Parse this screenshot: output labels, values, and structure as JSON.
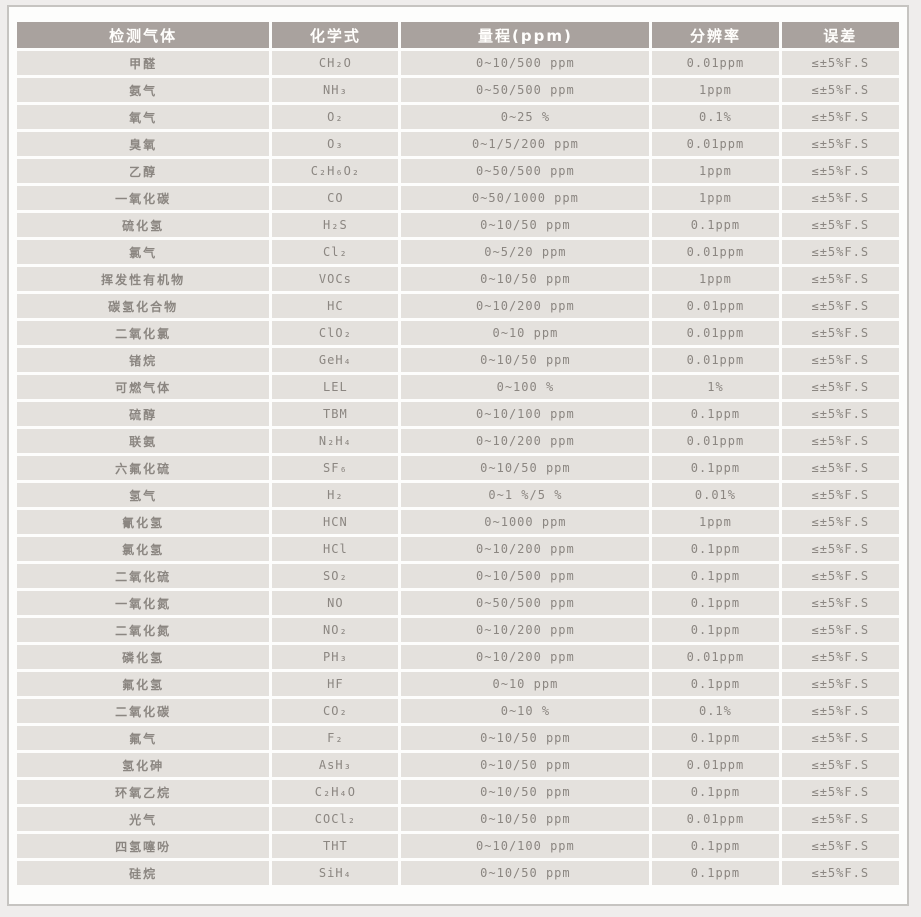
{
  "colors": {
    "page_bg": "#efedec",
    "frame_border": "#c6c4c1",
    "frame_bg": "#fdfdfc",
    "header_bg": "#a9a29e",
    "header_text": "#fffefc",
    "row_bg": "#e4e1dd",
    "cell_text": "#8b8681"
  },
  "table": {
    "columns": [
      {
        "label": "检测气体"
      },
      {
        "label": "化学式"
      },
      {
        "label": "量程(ppm)"
      },
      {
        "label": "分辨率"
      },
      {
        "label": "误差"
      }
    ],
    "rows": [
      {
        "gas": "甲醛",
        "formula": "CH₂O",
        "range": "0~10/500 ppm",
        "resolution": "0.01ppm",
        "error": "≤±5%F.S"
      },
      {
        "gas": "氨气",
        "formula": "NH₃",
        "range": "0~50/500 ppm",
        "resolution": "1ppm",
        "error": "≤±5%F.S"
      },
      {
        "gas": "氧气",
        "formula": "O₂",
        "range": "0~25 %",
        "resolution": "0.1%",
        "error": "≤±5%F.S"
      },
      {
        "gas": "臭氧",
        "formula": "O₃",
        "range": "0~1/5/200 ppm",
        "resolution": "0.01ppm",
        "error": "≤±5%F.S"
      },
      {
        "gas": "乙醇",
        "formula": "C₂H₆O₂",
        "range": "0~50/500 ppm",
        "resolution": "1ppm",
        "error": "≤±5%F.S"
      },
      {
        "gas": "一氧化碳",
        "formula": "CO",
        "range": "0~50/1000 ppm",
        "resolution": "1ppm",
        "error": "≤±5%F.S"
      },
      {
        "gas": "硫化氢",
        "formula": "H₂S",
        "range": "0~10/50 ppm",
        "resolution": "0.1ppm",
        "error": "≤±5%F.S"
      },
      {
        "gas": "氯气",
        "formula": "Cl₂",
        "range": "0~5/20 ppm",
        "resolution": "0.01ppm",
        "error": "≤±5%F.S"
      },
      {
        "gas": "挥发性有机物",
        "formula": "VOCs",
        "range": "0~10/50 ppm",
        "resolution": "1ppm",
        "error": "≤±5%F.S"
      },
      {
        "gas": "碳氢化合物",
        "formula": "HC",
        "range": "0~10/200 ppm",
        "resolution": "0.01ppm",
        "error": "≤±5%F.S"
      },
      {
        "gas": "二氧化氯",
        "formula": "ClO₂",
        "range": "0~10 ppm",
        "resolution": "0.01ppm",
        "error": "≤±5%F.S"
      },
      {
        "gas": "锗烷",
        "formula": "GeH₄",
        "range": "0~10/50 ppm",
        "resolution": "0.01ppm",
        "error": "≤±5%F.S"
      },
      {
        "gas": "可燃气体",
        "formula": "LEL",
        "range": "0~100 %",
        "resolution": "1%",
        "error": "≤±5%F.S"
      },
      {
        "gas": "硫醇",
        "formula": "TBM",
        "range": "0~10/100 ppm",
        "resolution": "0.1ppm",
        "error": "≤±5%F.S"
      },
      {
        "gas": "联氨",
        "formula": "N₂H₄",
        "range": "0~10/200 ppm",
        "resolution": "0.01ppm",
        "error": "≤±5%F.S"
      },
      {
        "gas": "六氟化硫",
        "formula": "SF₆",
        "range": "0~10/50 ppm",
        "resolution": "0.1ppm",
        "error": "≤±5%F.S"
      },
      {
        "gas": "氢气",
        "formula": "H₂",
        "range": "0~1 %/5 %",
        "resolution": "0.01%",
        "error": "≤±5%F.S"
      },
      {
        "gas": "氰化氢",
        "formula": "HCN",
        "range": "0~1000 ppm",
        "resolution": "1ppm",
        "error": "≤±5%F.S"
      },
      {
        "gas": "氯化氢",
        "formula": "HCl",
        "range": "0~10/200 ppm",
        "resolution": "0.1ppm",
        "error": "≤±5%F.S"
      },
      {
        "gas": "二氧化硫",
        "formula": "SO₂",
        "range": "0~10/500 ppm",
        "resolution": "0.1ppm",
        "error": "≤±5%F.S"
      },
      {
        "gas": "一氧化氮",
        "formula": "NO",
        "range": "0~50/500 ppm",
        "resolution": "0.1ppm",
        "error": "≤±5%F.S"
      },
      {
        "gas": "二氧化氮",
        "formula": "NO₂",
        "range": "0~10/200 ppm",
        "resolution": "0.1ppm",
        "error": "≤±5%F.S"
      },
      {
        "gas": "磷化氢",
        "formula": "PH₃",
        "range": "0~10/200 ppm",
        "resolution": "0.01ppm",
        "error": "≤±5%F.S"
      },
      {
        "gas": "氟化氢",
        "formula": "HF",
        "range": "0~10 ppm",
        "resolution": "0.1ppm",
        "error": "≤±5%F.S"
      },
      {
        "gas": "二氧化碳",
        "formula": "CO₂",
        "range": "0~10 %",
        "resolution": "0.1%",
        "error": "≤±5%F.S"
      },
      {
        "gas": "氟气",
        "formula": "F₂",
        "range": "0~10/50 ppm",
        "resolution": "0.1ppm",
        "error": "≤±5%F.S"
      },
      {
        "gas": "氢化砷",
        "formula": "AsH₃",
        "range": "0~10/50 ppm",
        "resolution": "0.01ppm",
        "error": "≤±5%F.S"
      },
      {
        "gas": "环氧乙烷",
        "formula": "C₂H₄O",
        "range": "0~10/50 ppm",
        "resolution": "0.1ppm",
        "error": "≤±5%F.S"
      },
      {
        "gas": "光气",
        "formula": "COCl₂",
        "range": "0~10/50 ppm",
        "resolution": "0.01ppm",
        "error": "≤±5%F.S"
      },
      {
        "gas": "四氢噻吩",
        "formula": "THT",
        "range": "0~10/100 ppm",
        "resolution": "0.1ppm",
        "error": "≤±5%F.S"
      },
      {
        "gas": "硅烷",
        "formula": "SiH₄",
        "range": "0~10/50 ppm",
        "resolution": "0.1ppm",
        "error": "≤±5%F.S"
      }
    ]
  }
}
